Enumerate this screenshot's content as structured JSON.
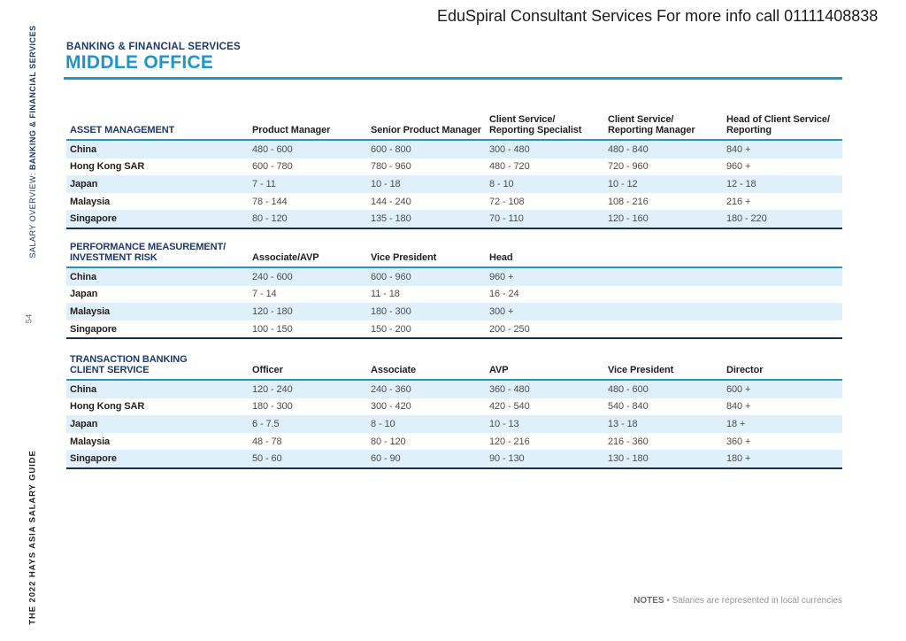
{
  "banner": {
    "text": "EduSpiral Consultant Services For more info call 01111408838"
  },
  "sidebar": {
    "top_label_prefix": "SALARY OVERVIEW: ",
    "top_label_bold": "BANKING & FINANCIAL SERVICES",
    "page_number": "54",
    "bottom_label": "THE 2022 HAYS ASIA SALARY GUIDE"
  },
  "header": {
    "eyebrow": "BANKING & FINANCIAL SERVICES",
    "title": "MIDDLE OFFICE"
  },
  "tables": [
    {
      "section": "ASSET MANAGEMENT",
      "columns": [
        "Product Manager",
        "Senior Product Manager",
        "Client Service/\nReporting Specialist",
        "Client Service/\nReporting Manager",
        "Head of Client Service/\nReporting"
      ],
      "rows": [
        {
          "country": "China",
          "values": [
            "480 - 600",
            "600 - 800",
            "300 - 480",
            "480 - 840",
            "840 +"
          ]
        },
        {
          "country": "Hong Kong SAR",
          "values": [
            "600 - 780",
            "780 - 960",
            "480 - 720",
            "720 - 960",
            "960 +"
          ]
        },
        {
          "country": "Japan",
          "values": [
            "7 - 11",
            "10 - 18",
            "8 - 10",
            "10 - 12",
            "12 - 18"
          ]
        },
        {
          "country": "Malaysia",
          "values": [
            "78 - 144",
            "144 - 240",
            "72 - 108",
            "108 - 216",
            "216 +"
          ]
        },
        {
          "country": "Singapore",
          "values": [
            "80 - 120",
            "135 - 180",
            "70 - 110",
            "120 - 160",
            "180 - 220"
          ]
        }
      ]
    },
    {
      "section": "PERFORMANCE MEASUREMENT/\nINVESTMENT RISK",
      "columns": [
        "Associate/AVP",
        "Vice President",
        "Head"
      ],
      "rows": [
        {
          "country": "China",
          "values": [
            "240 - 600",
            "600 - 960",
            "960 +"
          ]
        },
        {
          "country": "Japan",
          "values": [
            "7 - 14",
            "11 - 18",
            "16 - 24"
          ]
        },
        {
          "country": "Malaysia",
          "values": [
            "120 - 180",
            "180 - 300",
            "300 +"
          ]
        },
        {
          "country": "Singapore",
          "values": [
            "100 - 150",
            "150 - 200",
            "200 - 250"
          ]
        }
      ]
    },
    {
      "section": "TRANSACTION BANKING\nCLIENT SERVICE",
      "columns": [
        "Officer",
        "Associate",
        "AVP",
        "Vice President",
        "Director"
      ],
      "rows": [
        {
          "country": "China",
          "values": [
            "120 - 240",
            "240 - 360",
            "360 - 480",
            "480 - 600",
            "600 +"
          ]
        },
        {
          "country": "Hong Kong SAR",
          "values": [
            "180 - 300",
            "300 - 420",
            "420 - 540",
            "540 - 840",
            "840 +"
          ]
        },
        {
          "country": "Japan",
          "values": [
            "6 - 7.5",
            "8 - 10",
            "10 - 13",
            "13 - 18",
            "18 +"
          ]
        },
        {
          "country": "Malaysia",
          "values": [
            "48 - 78",
            "80 - 120",
            "120 - 216",
            "216 - 360",
            "360 +"
          ]
        },
        {
          "country": "Singapore",
          "values": [
            "50 - 60",
            "60 - 90",
            "90 - 130",
            "130 - 180",
            "180 +"
          ]
        }
      ]
    }
  ],
  "notes": {
    "label": "NOTES",
    "separator": "•",
    "text": "Salaries are represented in local currencies"
  },
  "colors": {
    "accent_cyan": "#2095cc",
    "navy": "#1d3a70",
    "row_highlight": "#dff0fa",
    "table_bottom_border": "#1b2f55",
    "value_text": "#4d4d4f"
  }
}
